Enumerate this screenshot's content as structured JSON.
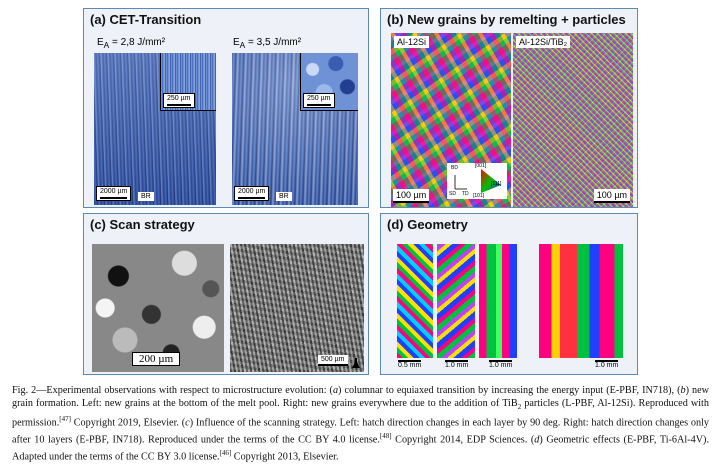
{
  "panels": {
    "a": {
      "title": "(a) CET-Transition",
      "left_energy": "E<sub>A</sub> = 2,8 J/mm²",
      "right_energy": "E<sub>A</sub> = 3,5 J/mm²",
      "inset_scale": "250 µm",
      "main_scale": "2000 µm",
      "orientation": "BR"
    },
    "b": {
      "title": "(b) New grains by remelting + particles",
      "left_label": "Al-12Si",
      "right_label": "Al-12Si/TiB₂",
      "scale": "100 µm",
      "axes": [
        "BD",
        "SD",
        "TD"
      ],
      "ipf_labels": [
        "[001]",
        "[111]",
        "[101]"
      ]
    },
    "c": {
      "title": "(c) Scan strategy",
      "left_scale": "200 µm",
      "right_scale": "500 µm"
    },
    "d": {
      "title": "(d) Geometry",
      "scales": [
        "0.5 mm",
        "1.0 mm",
        "1.0 mm",
        "1.0 mm"
      ]
    }
  },
  "caption": "Fig. 2—Experimental observations with respect to microstructure evolution: (<i>a</i>) columnar to equiaxed transition by increasing the energy input (E-PBF, IN718), (<i>b</i>) new grain formation. Left: new grains at the bottom of the melt pool. Right: new grains everywhere due to the addition of TiB<sub>2</sub> particles (L-PBF, Al-12Si). Reproduced with permission.<sup>[47]</sup> Copyright 2019, Elsevier. (<i>c</i>) Influence of the scanning strategy. Left: hatch direction changes in each layer by 90 deg. Right: hatch direction changes only after 10 layers (E-PBF, IN718). Reproduced under the terms of the CC BY 4.0 license.<sup>[48]</sup> Copyright 2014, EDP Sciences. (<i>d</i>) Geometric effects (E-PBF, Ti-6Al-4V). Adapted under the terms of the CC BY 3.0 license.<sup>[46]</sup> Copyright 2013, Elsevier."
}
